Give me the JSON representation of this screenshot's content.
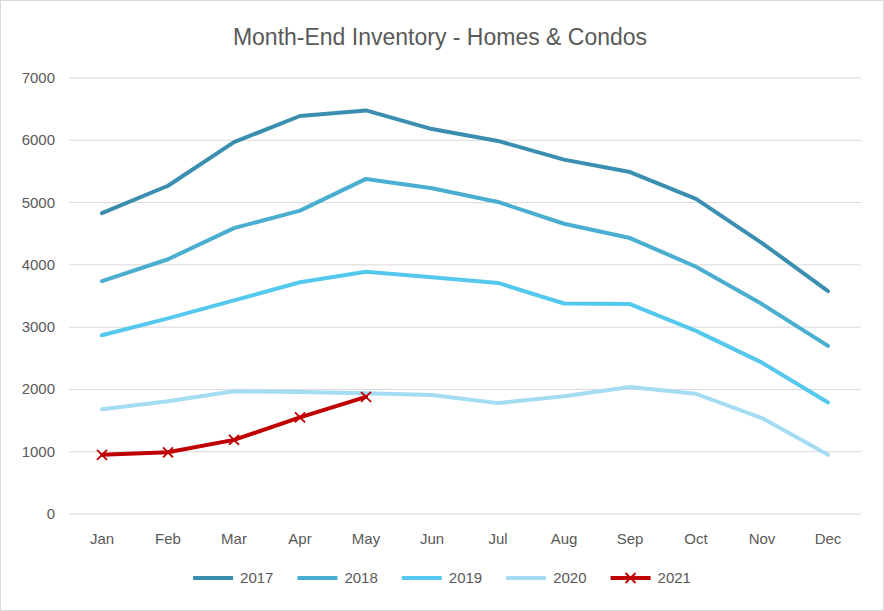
{
  "chart_data": {
    "type": "line",
    "title": "Month-End Inventory - Homes & Condos",
    "categories": [
      "Jan",
      "Feb",
      "Mar",
      "Apr",
      "May",
      "Jun",
      "Jul",
      "Aug",
      "Sep",
      "Oct",
      "Nov",
      "Dec"
    ],
    "series": [
      {
        "name": "2017",
        "color": "#3a8fb0",
        "marker": "none",
        "line_style": "solid",
        "values": [
          4830,
          5270,
          5970,
          6390,
          6480,
          6180,
          5990,
          5690,
          5490,
          5060,
          4350,
          3580
        ]
      },
      {
        "name": "2018",
        "color": "#4aaed0",
        "marker": "none",
        "line_style": "solid",
        "values": [
          3740,
          4090,
          4590,
          4870,
          5380,
          5230,
          5010,
          4660,
          4430,
          3970,
          3370,
          2700
        ]
      },
      {
        "name": "2019",
        "color": "#55c8ee",
        "marker": "none",
        "line_style": "solid",
        "values": [
          2870,
          3140,
          3430,
          3720,
          3890,
          3800,
          3710,
          3380,
          3370,
          2940,
          2430,
          1790
        ]
      },
      {
        "name": "2020",
        "color": "#a3dcf3",
        "marker": "none",
        "line_style": "solid",
        "values": [
          1680,
          1810,
          1970,
          1960,
          1940,
          1910,
          1780,
          1890,
          2040,
          1930,
          1540,
          950
        ]
      },
      {
        "name": "2021",
        "color": "#c00000",
        "marker": "x",
        "line_style": "solid",
        "values": [
          950,
          990,
          1190,
          1550,
          1880,
          null,
          null,
          null,
          null,
          null,
          null,
          null
        ]
      }
    ],
    "ylim": [
      0,
      7000
    ],
    "yticks": [
      0,
      1000,
      2000,
      3000,
      4000,
      5000,
      6000,
      7000
    ],
    "grid": true,
    "legend": "bottom"
  }
}
